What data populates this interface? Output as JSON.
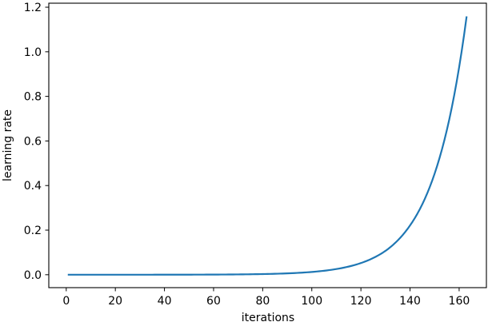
{
  "chart_data": {
    "type": "line",
    "title": "",
    "xlabel": "iterations",
    "ylabel": "learning rate",
    "xlim": [
      -7.1,
      171.1
    ],
    "ylim": [
      -0.058,
      1.218
    ],
    "grid": false,
    "legend": null,
    "line_color": "#1f77b4",
    "x_ticks": [
      0,
      20,
      40,
      60,
      80,
      100,
      120,
      140,
      160
    ],
    "x_tick_labels": [
      "0",
      "20",
      "40",
      "60",
      "80",
      "100",
      "120",
      "140",
      "160"
    ],
    "y_ticks": [
      0.0,
      0.2,
      0.4,
      0.6,
      0.8,
      1.0,
      1.2
    ],
    "y_tick_labels": [
      "0.0",
      "0.2",
      "0.4",
      "0.6",
      "0.8",
      "1.0",
      "1.2"
    ],
    "series": [
      {
        "name": "learning rate",
        "x": [
          1,
          10,
          20,
          30,
          40,
          50,
          60,
          70,
          80,
          90,
          100,
          105,
          110,
          115,
          120,
          125,
          130,
          135,
          140,
          145,
          150,
          155,
          160,
          163
        ],
        "values": [
          1e-05,
          1.9e-05,
          3.9e-05,
          8.1e-05,
          0.000166,
          0.00034,
          0.000698,
          0.00143,
          0.00294,
          0.00604,
          0.0124,
          0.0178,
          0.0255,
          0.0365,
          0.0523,
          0.075,
          0.107,
          0.154,
          0.221,
          0.316,
          0.453,
          0.649,
          0.931,
          1.155
        ]
      }
    ]
  }
}
